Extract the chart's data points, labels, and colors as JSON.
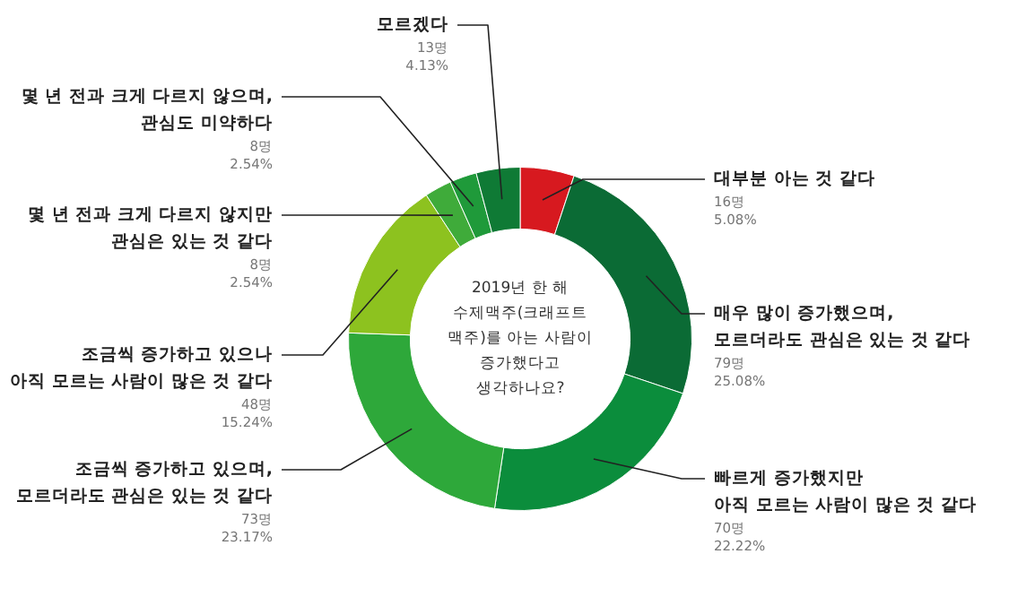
{
  "chart_data": {
    "type": "donut",
    "title": "2019년 한 해\n수제맥주(크래프트\n맥주)를 아는 사람이\n증가했다고\n생각하나요?",
    "categories": [
      "대부분 아는 것 같다",
      "매우 많이 증가했으며,\n모르더라도 관심은 있는 것 같다",
      "빠르게 증가했지만\n아직 모르는 사람이 많은 것 같다",
      "조금씩 증가하고 있으며,\n모르더라도 관심은 있는 것 같다",
      "조금씩 증가하고 있으나\n아직 모르는 사람이 많은 것 같다",
      "몇 년 전과 크게 다르지 않지만\n관심은 있는 것 같다",
      "몇 년 전과 크게 다르지 않으며,\n관심도 미약하다",
      "모르겠다"
    ],
    "values": [
      16,
      79,
      70,
      73,
      48,
      8,
      8,
      13
    ],
    "colors": [
      "#d7191f",
      "#0b6b35",
      "#0b8d3c",
      "#2ea83a",
      "#8dc21f",
      "#3fab3a",
      "#1f9a3a",
      "#0f7a35"
    ],
    "value_labels": [
      "16명\n5.08%",
      "79명\n25.08%",
      "70명\n22.22%",
      "73명\n23.17%",
      "48명\n15.24%",
      "8명\n2.54%",
      "8명\n2.54%",
      "13명\n4.13%"
    ]
  }
}
